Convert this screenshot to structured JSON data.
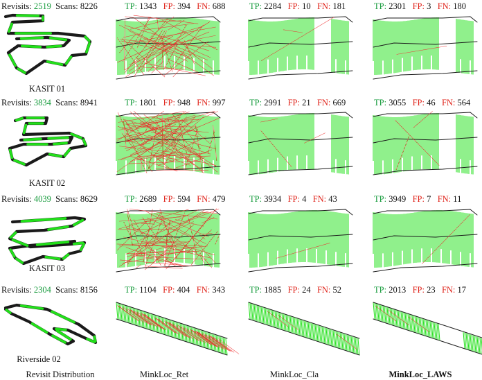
{
  "rows": [
    {
      "dataset": "KASIT 01",
      "revisits_label": "Revisits:",
      "revisits": "2519",
      "scans_label": "Scans:",
      "scans": "8226",
      "methods": [
        {
          "tp": "1343",
          "fp": "394",
          "fn": "688"
        },
        {
          "tp": "2284",
          "fp": "10",
          "fn": "181"
        },
        {
          "tp": "2301",
          "fp": "3",
          "fn": "180"
        }
      ]
    },
    {
      "dataset": "KASIT 02",
      "revisits_label": "Revisits:",
      "revisits": "3834",
      "scans_label": "Scans:",
      "scans": "8941",
      "methods": [
        {
          "tp": "1801",
          "fp": "948",
          "fn": "997"
        },
        {
          "tp": "2991",
          "fp": "21",
          "fn": "669"
        },
        {
          "tp": "3055",
          "fp": "46",
          "fn": "564"
        }
      ]
    },
    {
      "dataset": "KASIT 03",
      "revisits_label": "Revisits:",
      "revisits": "4039",
      "scans_label": "Scans:",
      "scans": "8629",
      "methods": [
        {
          "tp": "2689",
          "fp": "594",
          "fn": "479"
        },
        {
          "tp": "3934",
          "fp": "4",
          "fn": "43"
        },
        {
          "tp": "3949",
          "fp": "7",
          "fn": "11"
        }
      ]
    },
    {
      "dataset": "Riverside 02",
      "revisits_label": "Revisits:",
      "revisits": "2304",
      "scans_label": "Scans:",
      "scans": "8156",
      "methods": [
        {
          "tp": "1104",
          "fp": "404",
          "fn": "343"
        },
        {
          "tp": "1885",
          "fp": "24",
          "fn": "52"
        },
        {
          "tp": "2013",
          "fp": "23",
          "fn": "17"
        }
      ]
    }
  ],
  "labels": {
    "tp": "TP:",
    "fp": "FP:",
    "fn": "FN:"
  },
  "columns": [
    "Revisit Distribution",
    "MinkLoc_Ret",
    "MinkLoc_Cla",
    "MinkLoc_LAWS"
  ],
  "colors": {
    "green": "#169b3c",
    "red": "#e0241b",
    "match": "#22e01a",
    "false_match": "#ee2a2a",
    "track": "#1a1a1a"
  }
}
